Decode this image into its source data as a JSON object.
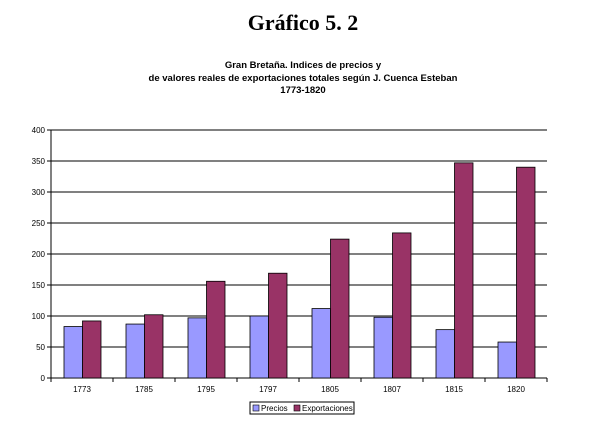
{
  "heading": "Gráfico 5. 2",
  "chart_data": {
    "type": "bar",
    "title_lines": [
      "Gran Bretaña. Indices de precios y",
      "de valores reales de exportaciones totales según J. Cuenca Esteban",
      "1773-1820"
    ],
    "categories": [
      "1773",
      "1785",
      "1795",
      "1797",
      "1805",
      "1807",
      "1815",
      "1820"
    ],
    "series": [
      {
        "name": "Precios",
        "color": "#9999ff",
        "values": [
          83,
          87,
          97,
          100,
          112,
          98,
          78,
          58
        ]
      },
      {
        "name": "Exportaciones",
        "color": "#993366",
        "values": [
          92,
          102,
          156,
          169,
          224,
          234,
          347,
          340
        ]
      }
    ],
    "ylim": [
      0,
      400
    ],
    "yticks": [
      0,
      50,
      100,
      150,
      200,
      250,
      300,
      350,
      400
    ],
    "grid": true,
    "legend_position": "bottom"
  }
}
